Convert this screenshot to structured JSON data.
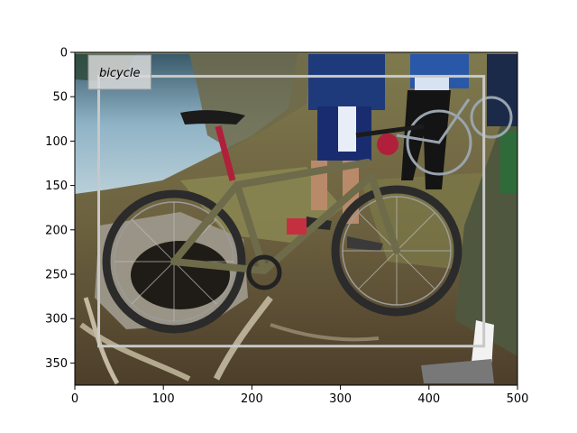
{
  "figure": {
    "image_description": "Photo of a green mountain bike standing on rough ground near a lake, with cyclists standing behind it",
    "x_range": [
      0,
      500
    ],
    "y_range": [
      375,
      0
    ],
    "x_ticks": [
      {
        "value": 0,
        "label": "0"
      },
      {
        "value": 100,
        "label": "100"
      },
      {
        "value": 200,
        "label": "200"
      },
      {
        "value": 300,
        "label": "300"
      },
      {
        "value": 400,
        "label": "400"
      },
      {
        "value": 500,
        "label": "500"
      }
    ],
    "y_ticks": [
      {
        "value": 0,
        "label": "0"
      },
      {
        "value": 50,
        "label": "50"
      },
      {
        "value": 100,
        "label": "100"
      },
      {
        "value": 150,
        "label": "150"
      },
      {
        "value": 200,
        "label": "200"
      },
      {
        "value": 250,
        "label": "250"
      },
      {
        "value": 300,
        "label": "300"
      },
      {
        "value": 350,
        "label": "350"
      }
    ],
    "detection": {
      "label": "bicycle",
      "x_min": 27,
      "y_min": 27,
      "x_max": 462,
      "y_max": 331,
      "box_color": "#c8c8c8"
    }
  }
}
